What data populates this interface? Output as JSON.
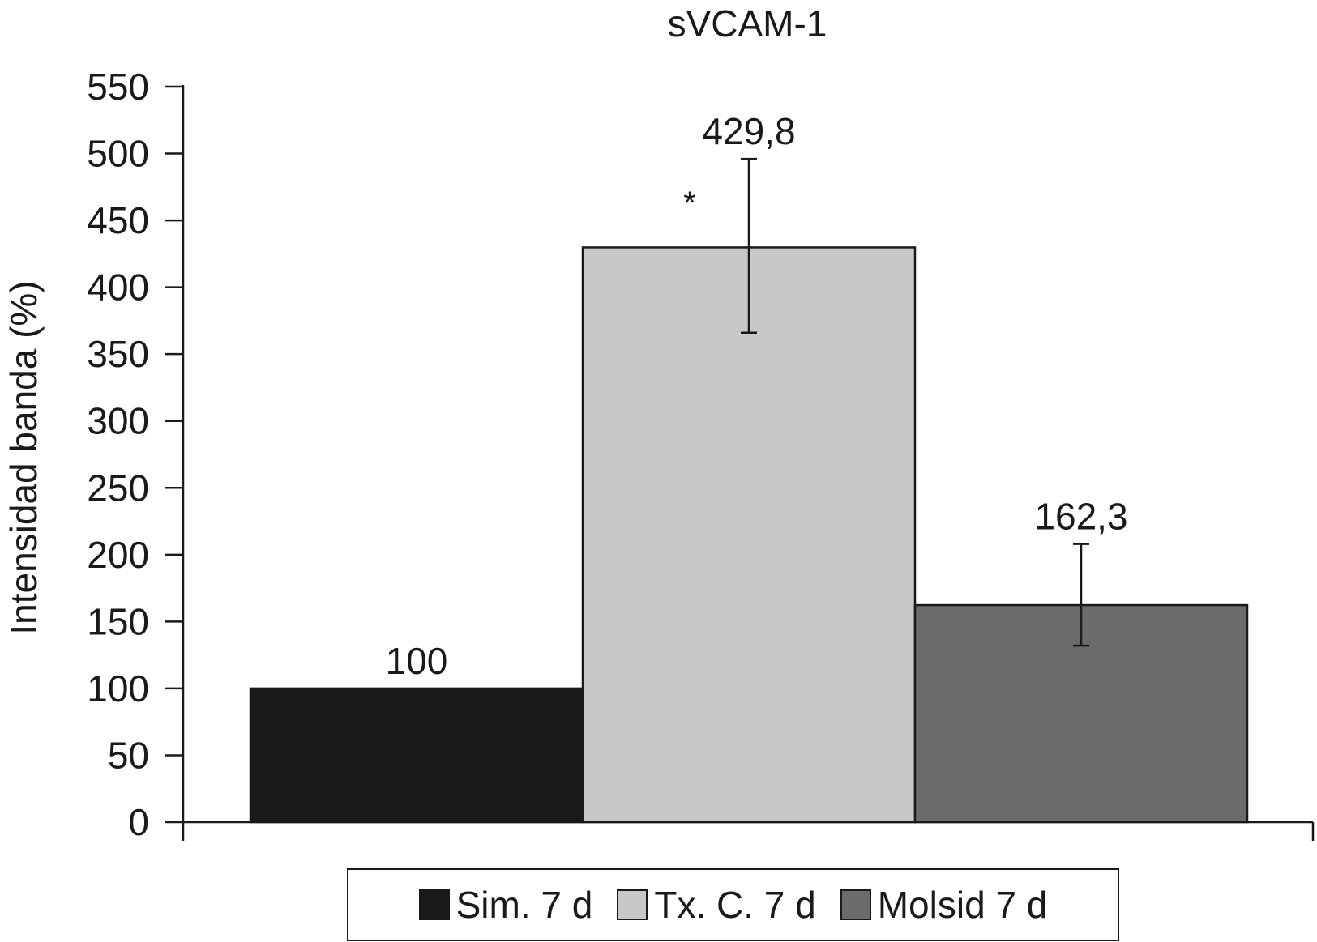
{
  "chart_data": {
    "type": "bar",
    "title": "sVCAM-1",
    "xlabel": "",
    "ylabel": "Intensidad banda (%)",
    "ylim": [
      0,
      550
    ],
    "yticks": [
      0,
      50,
      100,
      150,
      200,
      250,
      300,
      350,
      400,
      450,
      500,
      550
    ],
    "grid": false,
    "legend_position": "bottom",
    "categories": [
      "Sim. 7 d",
      "Tx. C. 7 d",
      "Molsid 7 d"
    ],
    "values": [
      100,
      429.8,
      162.3
    ],
    "value_labels": [
      "100",
      "429,8",
      "162,3"
    ],
    "error_bars": [
      null,
      [
        366,
        496
      ],
      [
        132,
        208
      ]
    ],
    "colors": [
      "#1a1a1a",
      "#c8c8c8",
      "#6b6b6b"
    ],
    "annotations": [
      {
        "text": "*",
        "category": "Tx. C. 7 d"
      }
    ]
  }
}
